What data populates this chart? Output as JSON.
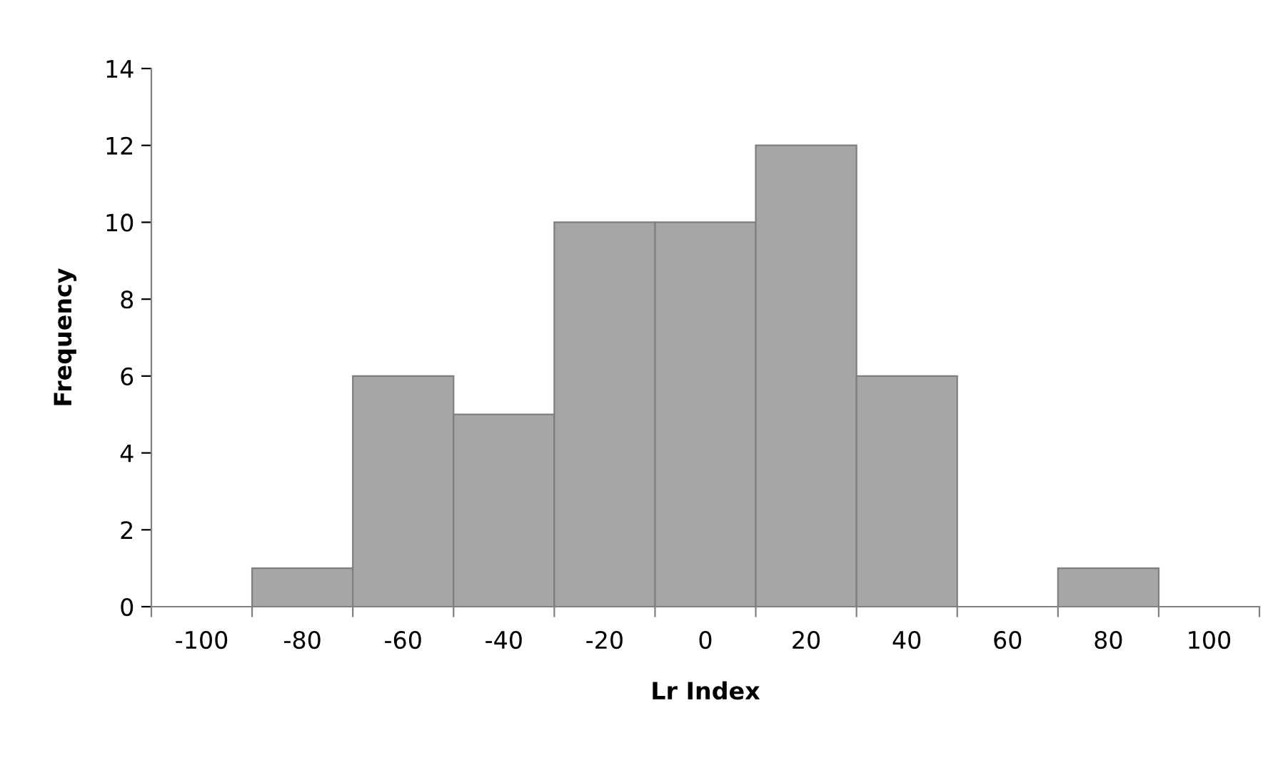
{
  "chart_data": {
    "type": "bar",
    "categories": [
      "-100",
      "-80",
      "-60",
      "-40",
      "-20",
      "0",
      "20",
      "40",
      "60",
      "80",
      "100"
    ],
    "values": [
      0,
      1,
      6,
      5,
      10,
      10,
      12,
      6,
      0,
      1,
      0
    ],
    "color": "#a6a6a6",
    "xlabel": "Lr Index",
    "ylabel": "Frequency",
    "ylim": [
      0,
      14
    ],
    "yticks": [
      0,
      2,
      4,
      6,
      8,
      10,
      12,
      14
    ],
    "grid": false,
    "legend": false
  }
}
